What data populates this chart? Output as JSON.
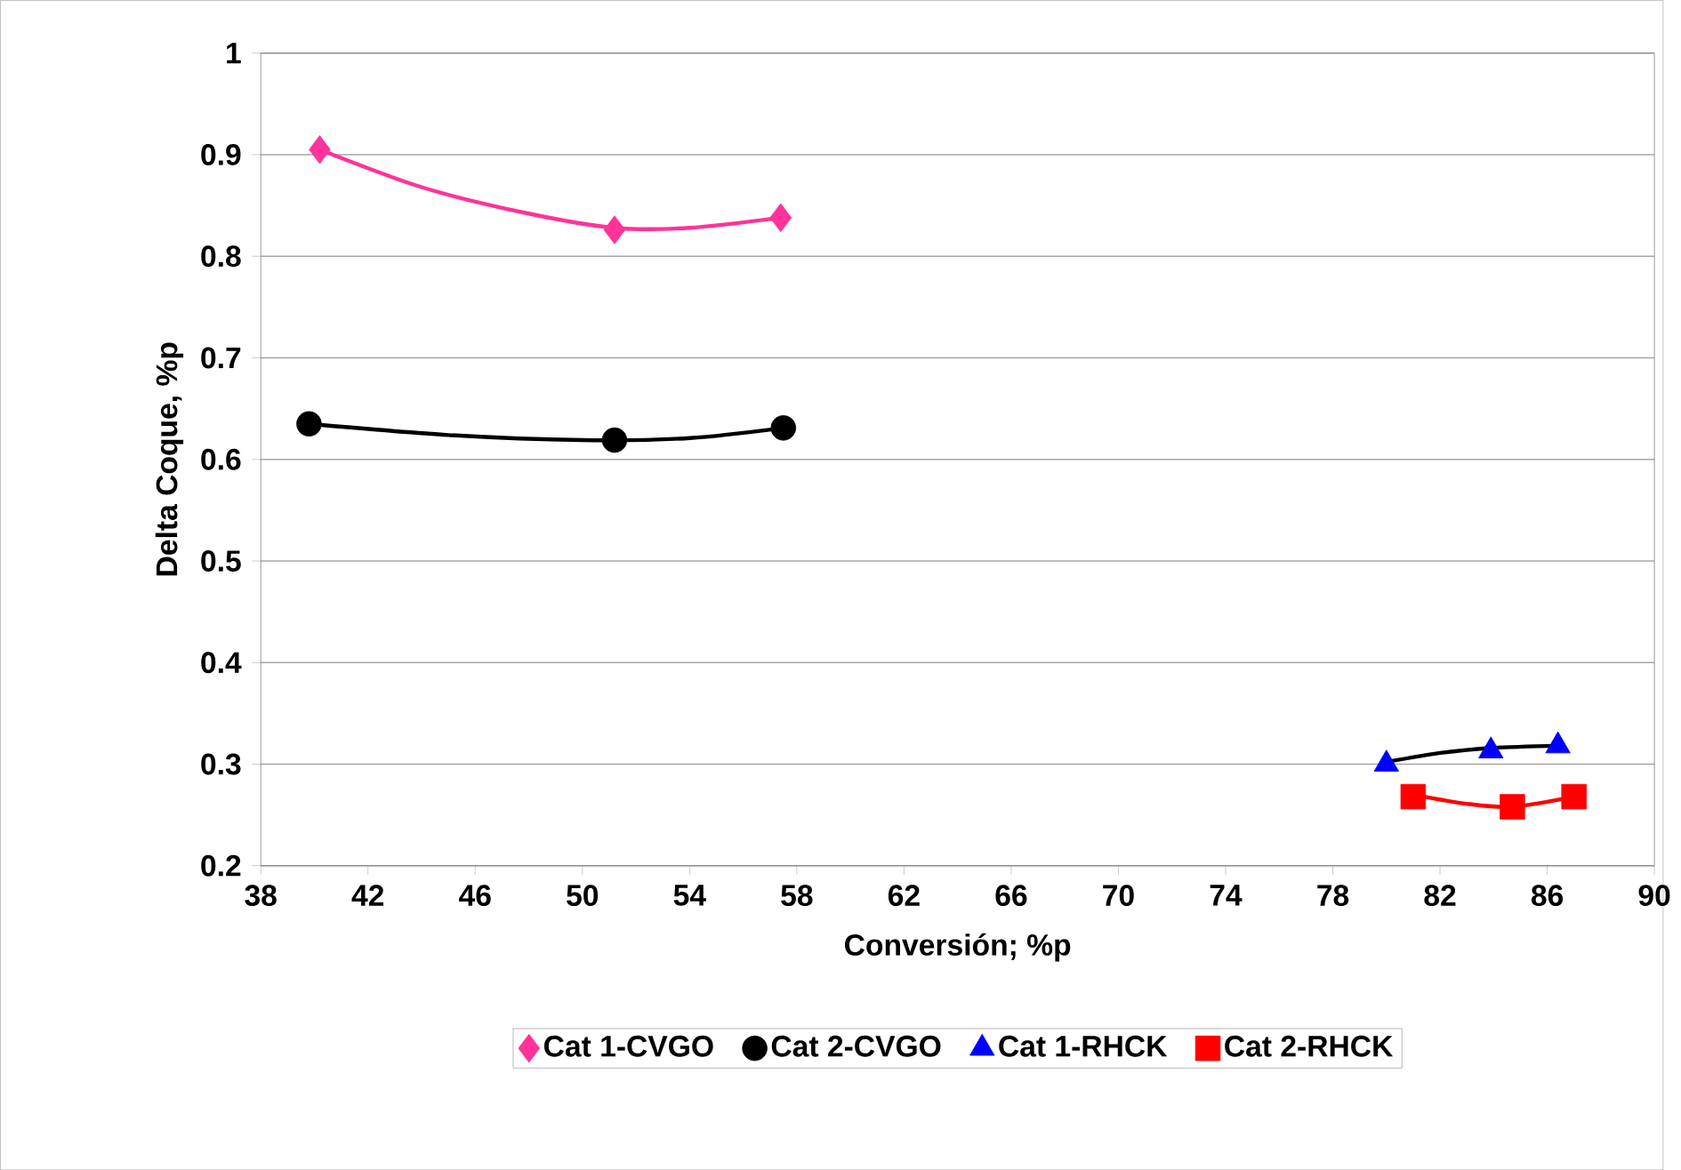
{
  "chart_data": {
    "type": "scatter",
    "xlabel": "Conversión; %p",
    "ylabel": "Delta Coque, %p",
    "xlim": [
      38,
      90
    ],
    "ylim": [
      0.2,
      1
    ],
    "xticks": [
      38,
      42,
      46,
      50,
      54,
      58,
      62,
      66,
      70,
      74,
      78,
      82,
      86,
      90
    ],
    "yticks": [
      0.2,
      0.3,
      0.4,
      0.5,
      0.6,
      0.7,
      0.8,
      0.9,
      1
    ],
    "grid": "y",
    "legend": "bottom",
    "series": [
      {
        "name": "Cat 1-CVGO",
        "color": "#ff3399",
        "marker": "diamond",
        "x": [
          40.2,
          51.2,
          57.4
        ],
        "values": [
          0.905,
          0.826,
          0.838
        ]
      },
      {
        "name": "Cat 2-CVGO",
        "color": "#000000",
        "marker": "circle",
        "x": [
          39.8,
          51.2,
          57.5
        ],
        "values": [
          0.635,
          0.619,
          0.631
        ]
      },
      {
        "name": "Cat 1-RHCK",
        "color": "#0000ff",
        "marker": "triangle",
        "x": [
          80,
          83.9,
          86.4
        ],
        "values": [
          0.3,
          0.313,
          0.318
        ]
      },
      {
        "name": "Cat 2-RHCK",
        "color": "#ff0000",
        "marker": "square",
        "x": [
          81,
          84.7,
          87
        ],
        "values": [
          0.268,
          0.258,
          0.268
        ]
      },
      {
        "type": "line",
        "color": "#ff3399",
        "marker": "none",
        "x": [
          40.2,
          44,
          48,
          51.2,
          54,
          57.4
        ],
        "values": [
          0.905,
          0.868,
          0.842,
          0.828,
          0.828,
          0.838
        ]
      },
      {
        "type": "line",
        "color": "#000000",
        "marker": "none",
        "x": [
          39.8,
          45,
          50,
          54,
          57.5
        ],
        "values": [
          0.635,
          0.624,
          0.619,
          0.621,
          0.631
        ]
      },
      {
        "type": "line",
        "color": "#000000",
        "marker": "none",
        "x": [
          80,
          82,
          84,
          86.4
        ],
        "values": [
          0.302,
          0.311,
          0.316,
          0.318
        ]
      },
      {
        "type": "line",
        "color": "#ff0000",
        "marker": "none",
        "x": [
          81,
          83,
          84.7,
          87
        ],
        "values": [
          0.27,
          0.261,
          0.258,
          0.268
        ]
      }
    ]
  }
}
